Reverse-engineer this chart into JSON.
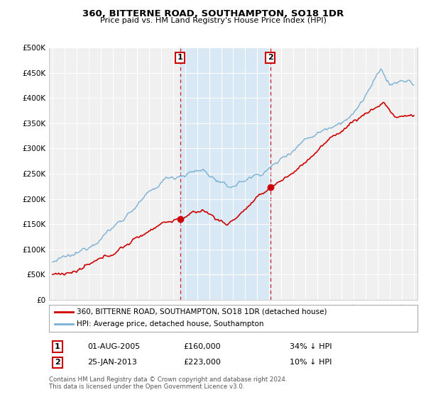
{
  "title": "360, BITTERNE ROAD, SOUTHAMPTON, SO18 1DR",
  "subtitle": "Price paid vs. HM Land Registry's House Price Index (HPI)",
  "legend_label_red": "360, BITTERNE ROAD, SOUTHAMPTON, SO18 1DR (detached house)",
  "legend_label_blue": "HPI: Average price, detached house, Southampton",
  "footnote": "Contains HM Land Registry data © Crown copyright and database right 2024.\nThis data is licensed under the Open Government Licence v3.0.",
  "sale1_date": "01-AUG-2005",
  "sale1_price": 160000,
  "sale1_label": "34% ↓ HPI",
  "sale1_year": 2005.583,
  "sale2_date": "25-JAN-2013",
  "sale2_price": 223000,
  "sale2_label": "10% ↓ HPI",
  "sale2_year": 2013.07,
  "red_color": "#cc0000",
  "blue_color": "#7ab0d4",
  "shade_color": "#d8e8f4",
  "background_color": "#f0f0f0",
  "plot_bg": "#f0f0f0",
  "grid_color": "#ffffff",
  "ylim": [
    0,
    500000
  ],
  "yticks": [
    0,
    50000,
    100000,
    150000,
    200000,
    250000,
    300000,
    350000,
    400000,
    450000,
    500000
  ],
  "xlabel_start_year": 1995,
  "xlabel_end_year": 2025
}
